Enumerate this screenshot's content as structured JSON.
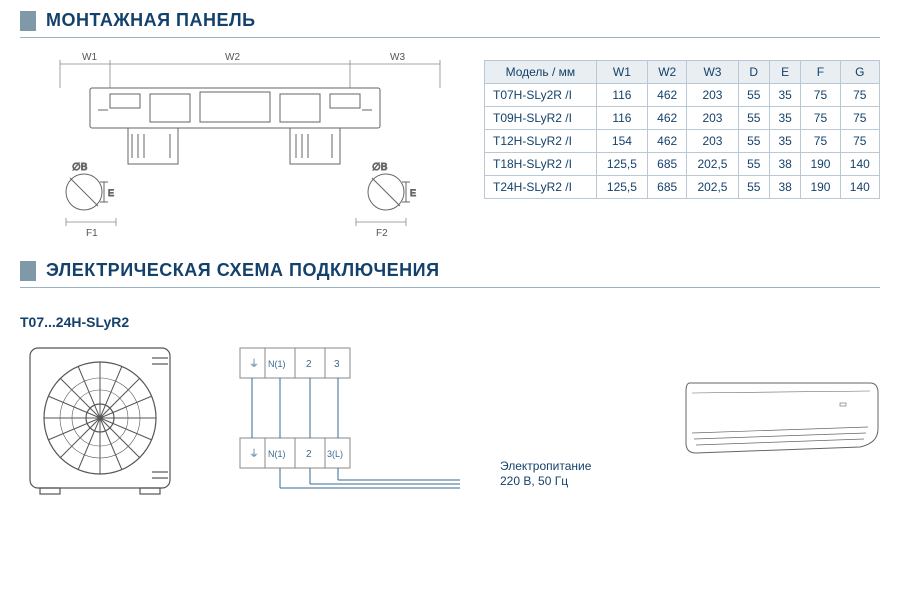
{
  "sections": {
    "mount_panel_title": "МОНТАЖНАЯ ПАНЕЛЬ",
    "wiring_title": "ЭЛЕКТРИЧЕСКАЯ СХЕМА ПОДКЛЮЧЕНИЯ"
  },
  "model_range": "T07...24H-SLyR2",
  "table": {
    "headers": [
      "Модель / мм",
      "W1",
      "W2",
      "W3",
      "D",
      "E",
      "F",
      "G"
    ],
    "rows": [
      [
        "T07H-SLy2R /I",
        "116",
        "462",
        "203",
        "55",
        "35",
        "75",
        "75"
      ],
      [
        "T09H-SLyR2 /I",
        "116",
        "462",
        "203",
        "55",
        "35",
        "75",
        "75"
      ],
      [
        "T12H-SLyR2 /I",
        "154",
        "462",
        "203",
        "55",
        "35",
        "75",
        "75"
      ],
      [
        "T18H-SLyR2 /I",
        "125,5",
        "685",
        "202,5",
        "55",
        "38",
        "190",
        "140"
      ],
      [
        "T24H-SLyR2 /I",
        "125,5",
        "685",
        "202,5",
        "55",
        "38",
        "190",
        "140"
      ]
    ]
  },
  "diagram_labels": {
    "w1": "W1",
    "w2": "W2",
    "w3": "W3",
    "f1": "F1",
    "f2": "F2",
    "ob": "∅B",
    "e": "E"
  },
  "terminal_labels": {
    "ground": "⏚",
    "n1": "N(1)",
    "l2": "2",
    "l3": "3",
    "l3L": "3(L)"
  },
  "power": {
    "line1": "Электропитание",
    "line2": "220 В, 50 Гц"
  },
  "colors": {
    "brand": "#14416b",
    "bar": "#7f99a8",
    "rule": "#99b3c4",
    "table_border": "#b8c8d4",
    "table_head_bg": "#e8eef2",
    "line_gray": "#888888",
    "line_blue": "#3a6a8f"
  }
}
